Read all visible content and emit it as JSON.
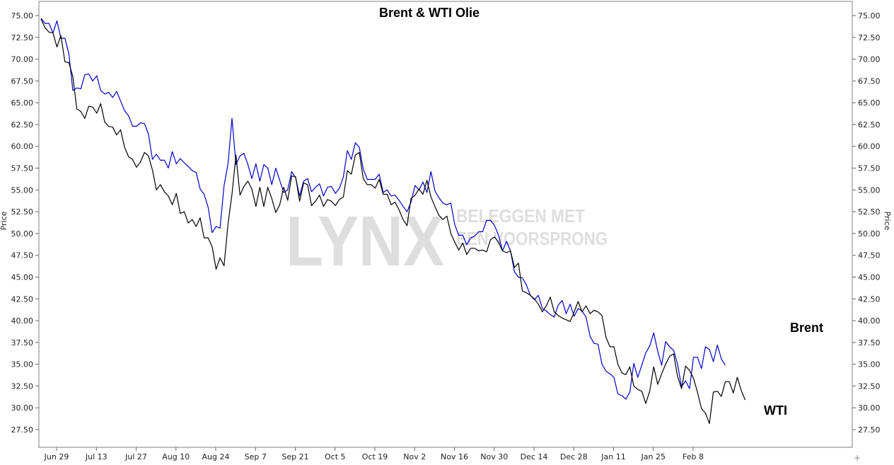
{
  "chart_data": {
    "type": "line",
    "title": "Brent & WTI Olie",
    "ylabel": "Price",
    "ylim": [
      25,
      77.5
    ],
    "yticks": [
      "27.50",
      "30.00",
      "32.50",
      "35.00",
      "37.50",
      "40.00",
      "42.50",
      "45.00",
      "47.50",
      "50.00",
      "52.50",
      "55.00",
      "57.50",
      "60.00",
      "62.50",
      "65.00",
      "67.50",
      "70.00",
      "72.50",
      "75.00"
    ],
    "xtick_labels": [
      "Jun 29",
      "Jul 13",
      "Jul 27",
      "Aug 10",
      "Aug 24",
      "Sep 7",
      "Sep 21",
      "Oct 5",
      "Oct 19",
      "Nov 2",
      "Nov 16",
      "Nov 30",
      "Dec 14",
      "Dec 28",
      "Jan 11",
      "Jan 25",
      "Feb 8"
    ],
    "watermark": {
      "logo": "LYNX",
      "line1": "BELEGGEN MET",
      "line2": "EEN VOORSPRONG"
    },
    "annotations": [
      "Brent",
      "WTI"
    ],
    "series": [
      {
        "name": "Brent",
        "color": "#0000cc",
        "values": [
          74.7,
          74.1,
          74.1,
          73.0,
          74.4,
          72.4,
          72.4,
          70.6,
          66.4,
          66.7,
          66.6,
          68.2,
          68.3,
          67.5,
          68.1,
          66.4,
          66.0,
          66.2,
          65.6,
          66.3,
          65.2,
          64.1,
          63.5,
          62.3,
          62.3,
          62.7,
          62.6,
          61.4,
          58.5,
          59.1,
          58.4,
          58.4,
          57.5,
          59.4,
          58.0,
          58.6,
          58.1,
          57.7,
          57.2,
          57.0,
          55.1,
          54.5,
          53.0,
          50.1,
          50.8,
          50.6,
          55.5,
          58.0,
          63.2,
          57.9,
          58.9,
          59.2,
          57.9,
          56.3,
          58.0,
          56.0,
          57.9,
          57.5,
          55.6,
          57.5,
          56.1,
          54.7,
          55.0,
          57.1,
          56.4,
          54.3,
          56.0,
          56.3,
          54.8,
          55.3,
          55.7,
          54.3,
          55.3,
          55.4,
          54.6,
          55.2,
          56.5,
          59.5,
          58.5,
          60.4,
          59.9,
          57.4,
          56.2,
          56.2,
          56.2,
          56.8,
          54.7,
          55.0,
          54.3,
          54.4,
          53.8,
          53.1,
          52.5,
          53.6,
          55.5,
          55.0,
          55.9,
          54.7,
          57.1,
          54.9,
          54.1,
          53.5,
          53.3,
          53.5,
          51.0,
          49.8,
          49.8,
          48.7,
          49.5,
          49.7,
          50.2,
          50.2,
          51.5,
          51.5,
          50.9,
          49.8,
          48.0,
          49.1,
          48.0,
          45.6,
          45.0,
          44.9,
          44.1,
          42.9,
          42.4,
          42.9,
          41.4,
          41.1,
          40.7,
          40.4,
          41.8,
          42.3,
          40.8,
          41.9,
          40.5,
          41.4,
          41.1,
          40.4,
          38.2,
          37.4,
          37.3,
          35.0,
          34.2,
          33.9,
          33.5,
          31.6,
          31.4,
          31.0,
          31.8,
          35.1,
          33.5,
          34.9,
          36.3,
          37.1,
          38.6,
          36.5,
          34.9,
          37.6,
          37.0,
          36.6,
          35.0,
          32.4,
          33.1,
          32.2,
          35.8,
          35.8,
          34.5,
          37.0,
          36.7,
          35.3,
          37.2,
          35.6,
          34.9
        ]
      },
      {
        "name": "WTI",
        "color": "#000000",
        "values": [
          74.6,
          73.6,
          73.1,
          73.0,
          71.4,
          72.7,
          69.7,
          69.6,
          68.0,
          64.3,
          64.0,
          63.2,
          64.6,
          64.5,
          63.8,
          64.9,
          62.8,
          62.3,
          62.2,
          61.3,
          61.9,
          59.9,
          58.8,
          58.5,
          57.6,
          58.2,
          59.3,
          58.9,
          57.3,
          55.0,
          55.6,
          54.8,
          54.3,
          53.3,
          54.6,
          52.3,
          52.5,
          51.2,
          51.6,
          50.8,
          51.8,
          49.5,
          49.5,
          48.5,
          45.9,
          47.2,
          46.3,
          51.1,
          54.5,
          59.0,
          54.4,
          55.4,
          56.0,
          55.1,
          53.1,
          55.3,
          53.1,
          55.3,
          54.0,
          52.4,
          53.3,
          55.3,
          53.8,
          56.6,
          56.5,
          53.7,
          55.8,
          55.6,
          53.2,
          53.7,
          54.4,
          53.1,
          53.9,
          53.7,
          53.2,
          53.9,
          54.2,
          57.2,
          56.8,
          59.0,
          59.3,
          56.3,
          55.6,
          55.6,
          55.2,
          56.2,
          54.5,
          54.5,
          53.3,
          53.6,
          52.7,
          51.6,
          50.9,
          54.0,
          54.4,
          55.1,
          54.5,
          56.1,
          54.2,
          53.1,
          52.1,
          51.6,
          52.0,
          50.0,
          49.0,
          48.1,
          48.9,
          47.6,
          48.3,
          48.3,
          48.0,
          48.1,
          47.9,
          49.3,
          49.6,
          49.0,
          48.0,
          47.8,
          48.0,
          46.1,
          46.6,
          43.4,
          43.2,
          42.9,
          42.5,
          41.9,
          41.0,
          41.7,
          42.7,
          41.0,
          40.6,
          40.3,
          40.1,
          39.9,
          41.0,
          42.2,
          41.0,
          41.7,
          40.8,
          41.2,
          41.0,
          40.6,
          38.1,
          37.0,
          37.0,
          35.0,
          34.0,
          33.8,
          34.7,
          32.5,
          32.1,
          31.9,
          30.5,
          31.9,
          34.7,
          32.7,
          33.9,
          35.0,
          35.9,
          36.2,
          33.6,
          32.2,
          34.8,
          34.3,
          33.4,
          31.8,
          29.9,
          29.4,
          28.2,
          31.8,
          31.9,
          31.3,
          33.0,
          33.0,
          31.7,
          33.5,
          32.0,
          30.9
        ]
      }
    ]
  }
}
